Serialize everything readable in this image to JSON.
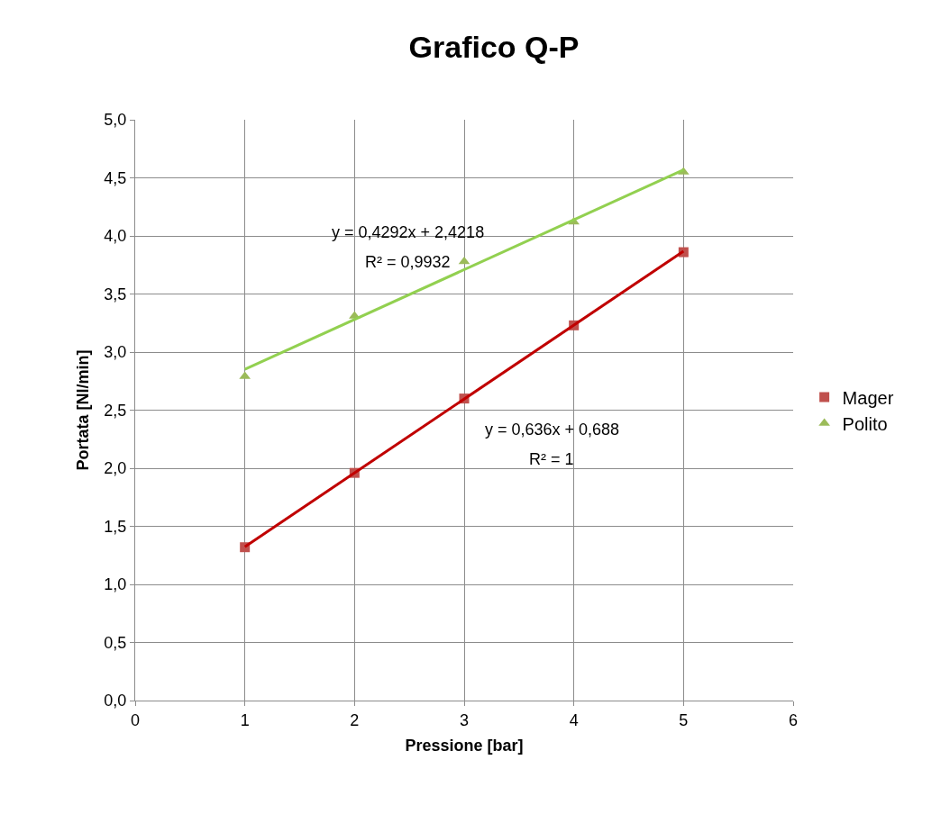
{
  "chart_data": {
    "type": "scatter",
    "title": "Grafico Q-P",
    "xlabel": "Pressione [bar]",
    "ylabel": "Portata [Nl/min]",
    "xlim": [
      0,
      6
    ],
    "xticks": [
      0,
      1,
      2,
      3,
      4,
      5,
      6
    ],
    "ylim": [
      0,
      5
    ],
    "yticks": [
      {
        "value": 0,
        "label": "0,0"
      },
      {
        "value": 0.5,
        "label": "0,5"
      },
      {
        "value": 1,
        "label": "1,0"
      },
      {
        "value": 1.5,
        "label": "1,5"
      },
      {
        "value": 2,
        "label": "2,0"
      },
      {
        "value": 2.5,
        "label": "2,5"
      },
      {
        "value": 3,
        "label": "3,0"
      },
      {
        "value": 3.5,
        "label": "3,5"
      },
      {
        "value": 4,
        "label": "4,0"
      },
      {
        "value": 4.5,
        "label": "4,5"
      },
      {
        "value": 5,
        "label": "5,0"
      }
    ],
    "grid": true,
    "legend": "right",
    "series": [
      {
        "name": "Mager",
        "marker": "square",
        "color": "#c0504d",
        "x": [
          1,
          2,
          3,
          4,
          5
        ],
        "values": [
          1.32,
          1.96,
          2.6,
          3.23,
          3.86
        ]
      },
      {
        "name": "Polito",
        "marker": "triangle",
        "color": "#9bbb59",
        "x": [
          1,
          2,
          3,
          4,
          5
        ],
        "values": [
          2.79,
          3.31,
          3.78,
          4.12,
          4.55
        ]
      },
      {
        "type": "line",
        "marker": "none",
        "line_style": "solid",
        "color": "#c00000",
        "x": [
          1,
          5
        ],
        "values": [
          1.324,
          3.868
        ]
      },
      {
        "type": "line",
        "marker": "none",
        "line_style": "solid",
        "color": "#92d050",
        "x": [
          1,
          5
        ],
        "values": [
          2.851,
          4.568
        ]
      }
    ],
    "annotations": [
      "y = 0,4292x + 2,4218",
      "R² = 0,9932",
      "y = 0,636x + 0,688",
      "R² = 1"
    ]
  }
}
